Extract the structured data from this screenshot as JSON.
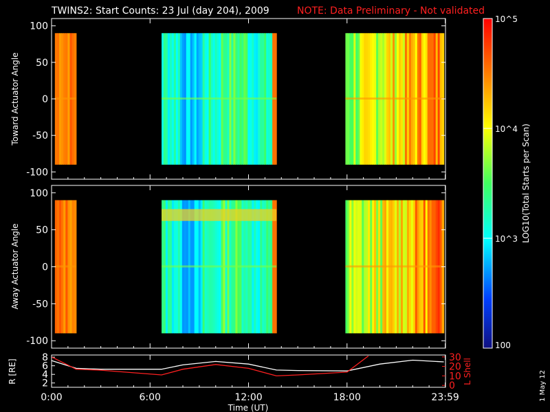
{
  "title": {
    "main": "TWINS2: Start Counts: 23 Jul (day 204), 2009",
    "note": "NOTE: Data Preliminary - Not validated",
    "note_color": "#ff2020"
  },
  "side_date": "1 May 12",
  "colorbar": {
    "label": "LOG10(Total Starts per Scan)",
    "tick_labels": [
      "100",
      "10^3",
      "10^4",
      "10^5"
    ]
  },
  "x_axis": {
    "label": "Time (UT)",
    "tick_labels": [
      "0:00",
      "6:00",
      "12:00",
      "18:00",
      "23:59"
    ]
  },
  "chart_data": [
    {
      "type": "heatmap",
      "ylabel": "Toward Actuator Angle",
      "ylim": [
        -110,
        110
      ],
      "yticks": [
        "100",
        "50",
        "0",
        "-50",
        "-100"
      ],
      "x_units": "hours UT",
      "data_blocks_hours": [
        [
          0.2,
          1.5
        ],
        [
          6.7,
          13.7
        ],
        [
          17.9,
          23.9
        ]
      ],
      "angle_range": [
        -90,
        90
      ],
      "colormap": "rainbow log 100 to 1e5"
    },
    {
      "type": "heatmap",
      "ylabel": "Away Actuator Angle",
      "ylim": [
        -110,
        110
      ],
      "yticks": [
        "100",
        "50",
        "0",
        "-50",
        "-100"
      ],
      "x_units": "hours UT",
      "data_blocks_hours": [
        [
          0.2,
          1.5
        ],
        [
          6.7,
          13.7
        ],
        [
          17.9,
          23.9
        ]
      ],
      "angle_range": [
        -90,
        90
      ],
      "colormap": "rainbow log 100 to 1e5"
    },
    {
      "type": "line",
      "ylabel_left": "R [RE]",
      "ylabel_right": "L Shell",
      "yticks_left": [
        "8",
        "6",
        "4",
        "2"
      ],
      "yticks_right": [
        "30",
        "20",
        "10",
        "0"
      ],
      "series": [
        {
          "name": "R [RE]",
          "color": "#ffffff",
          "x": [
            0,
            1.5,
            3,
            6.7,
            8,
            10,
            12,
            13.7,
            15,
            18,
            20,
            22,
            23.9
          ],
          "y": [
            7.2,
            5.4,
            5.2,
            5.2,
            6.2,
            7.0,
            6.4,
            5.0,
            4.9,
            4.8,
            6.4,
            7.3,
            6.9
          ]
        },
        {
          "name": "L Shell",
          "color": "#ff2020",
          "x": [
            0,
            1.5,
            3,
            6.7,
            8,
            10,
            12,
            13.7,
            15,
            18,
            19.3
          ],
          "y": [
            30,
            17,
            16,
            11,
            17,
            22,
            18,
            10,
            11,
            14,
            31
          ]
        }
      ]
    }
  ]
}
